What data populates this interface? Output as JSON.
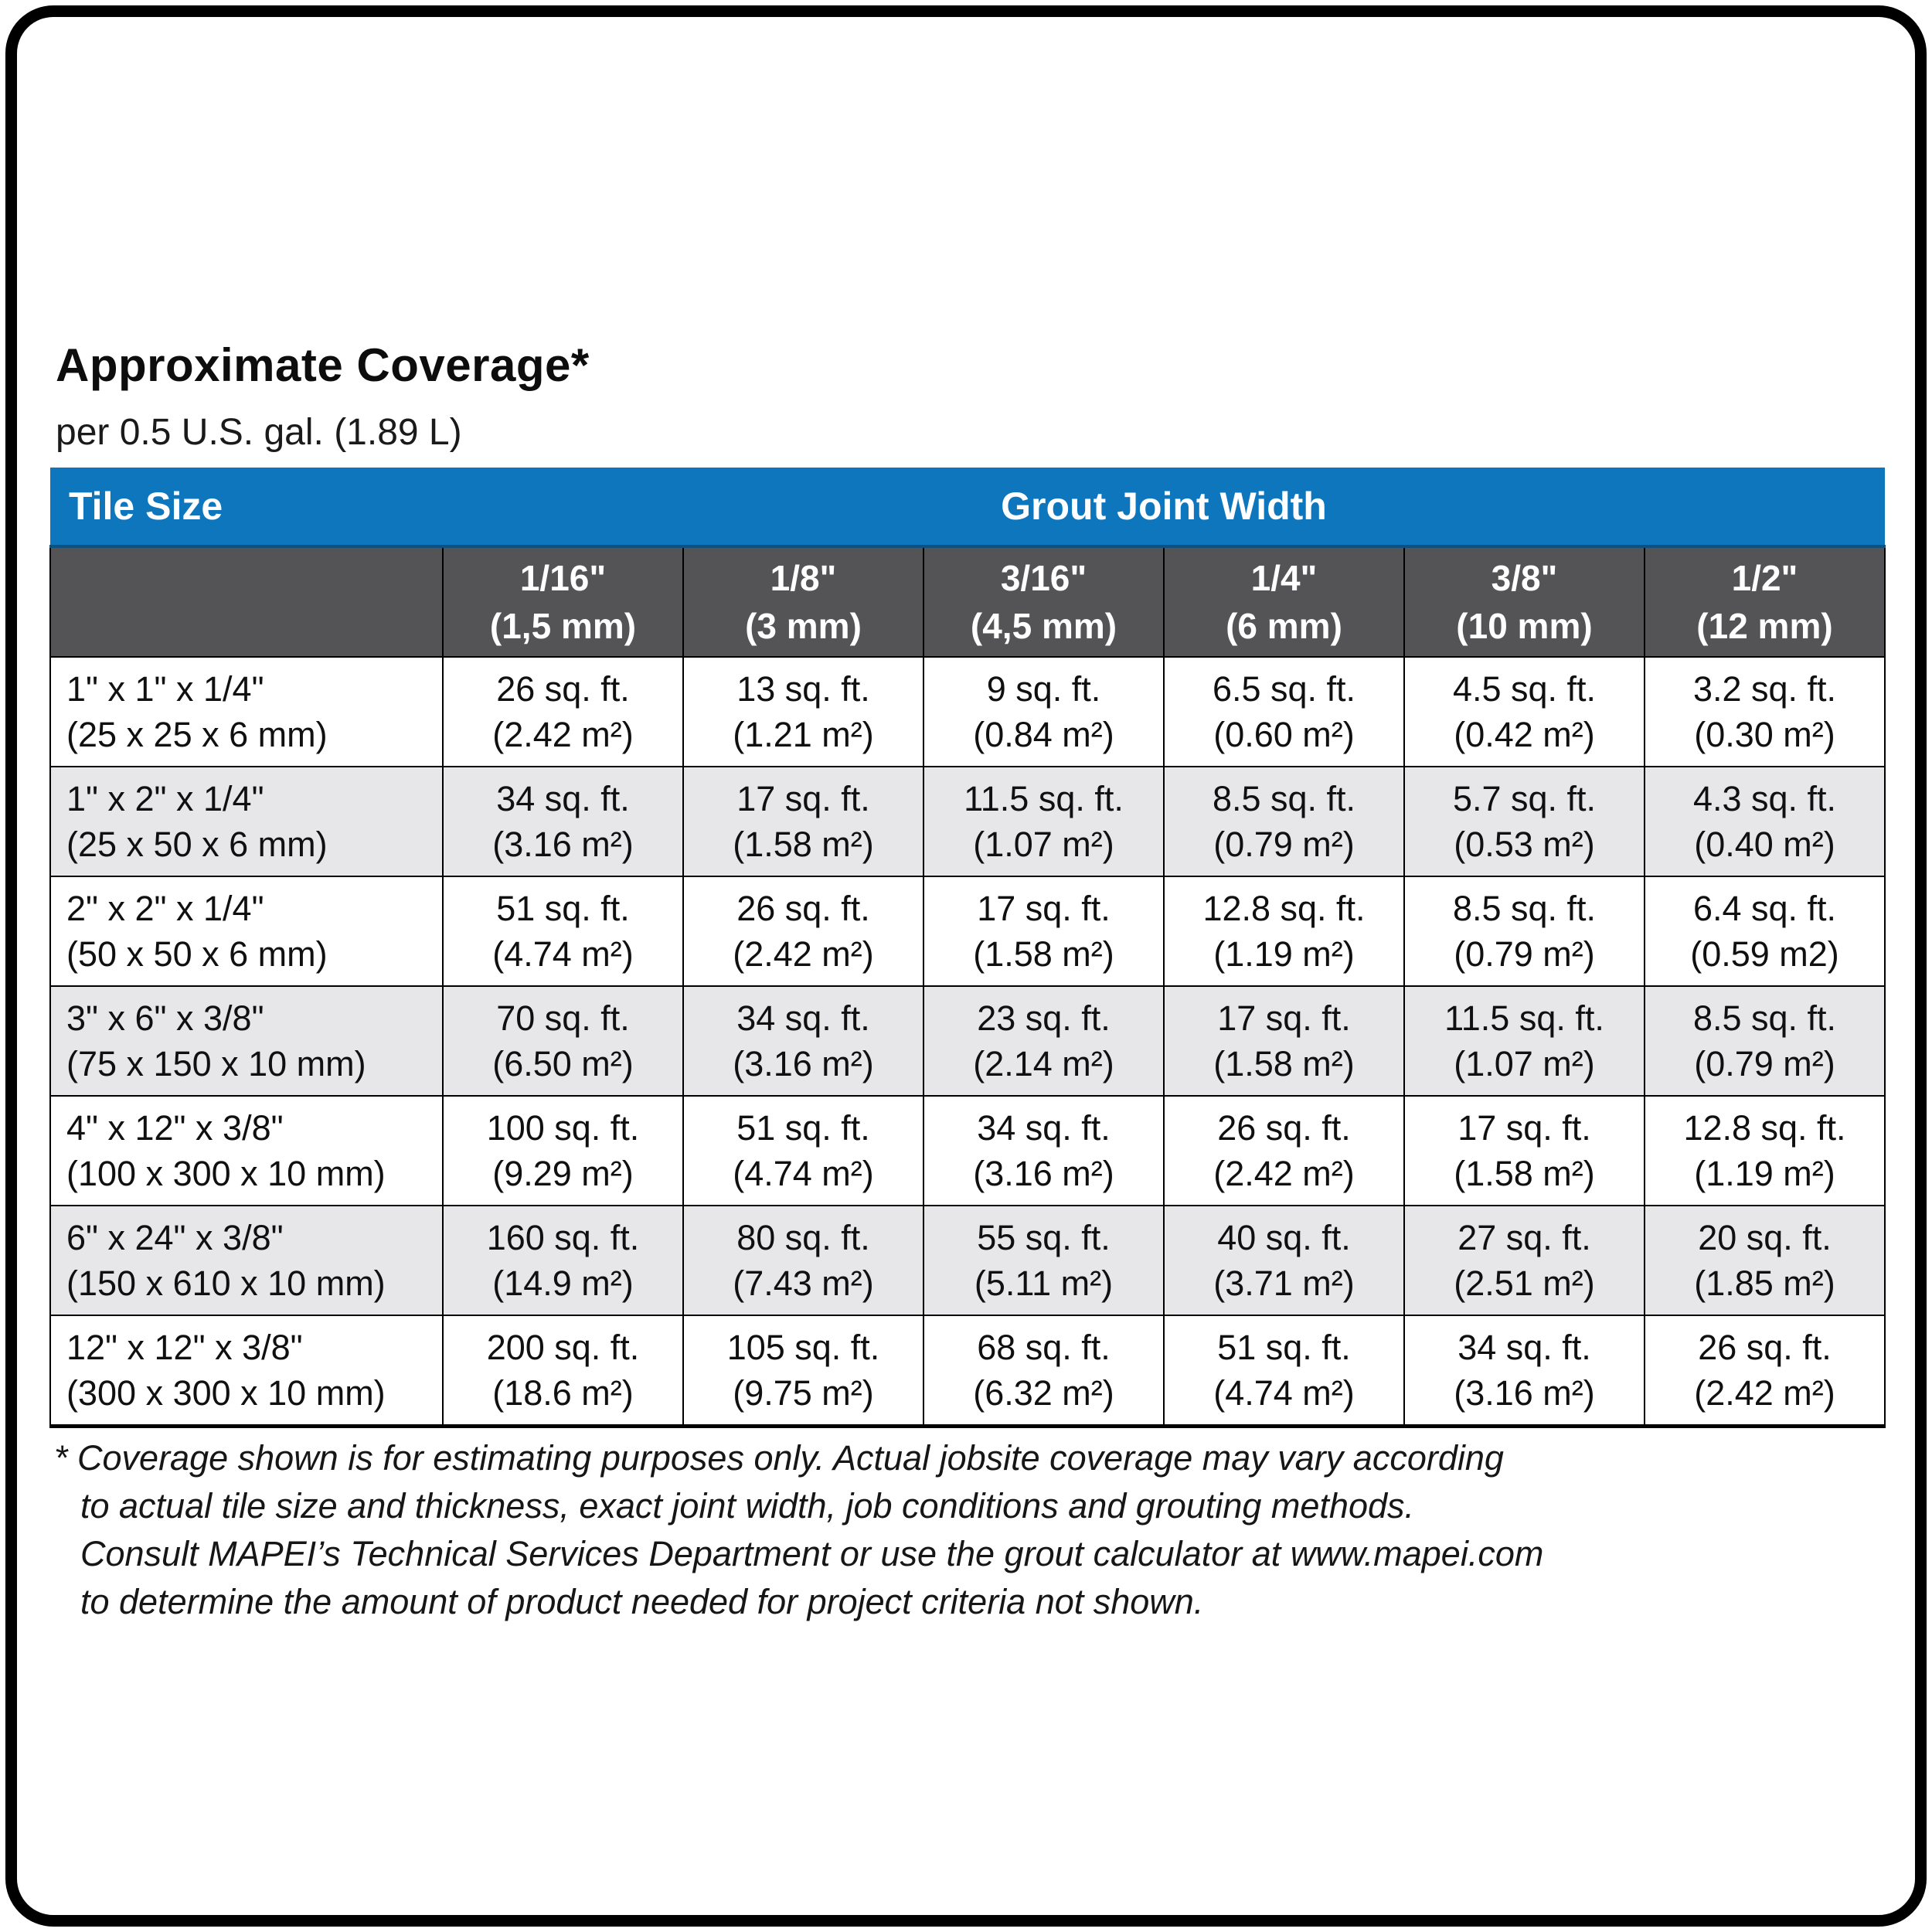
{
  "page": {
    "title": "Approximate Coverage*",
    "subtitle": "per 0.5 U.S. gal. (1.89 L)"
  },
  "colors": {
    "header_blue": "#0e76bd",
    "header_blue_edge": "#10507d",
    "subheader_gray": "#545456",
    "row_alt_gray": "#e7e7e9",
    "border_black": "#000000"
  },
  "table": {
    "corner_label": "Tile Size",
    "group_header": "Grout Joint Width",
    "columns": [
      {
        "size": "1/16\"",
        "mm": "(1,5 mm)"
      },
      {
        "size": "1/8\"",
        "mm": "(3 mm)"
      },
      {
        "size": "3/16\"",
        "mm": "(4,5 mm)"
      },
      {
        "size": "1/4\"",
        "mm": "(6 mm)"
      },
      {
        "size": "3/8\"",
        "mm": "(10 mm)"
      },
      {
        "size": "1/2\"",
        "mm": "(12 mm)"
      }
    ],
    "rows": [
      {
        "tile_in": "1\" x 1\" x 1/4\"",
        "tile_mm": "(25 x 25 x 6 mm)",
        "cells": [
          {
            "sqft": "26 sq. ft.",
            "m2": "(2.42 m²)"
          },
          {
            "sqft": "13 sq. ft.",
            "m2": "(1.21 m²)"
          },
          {
            "sqft": "9 sq. ft.",
            "m2": "(0.84 m²)"
          },
          {
            "sqft": "6.5 sq. ft.",
            "m2": "(0.60 m²)"
          },
          {
            "sqft": "4.5 sq. ft.",
            "m2": "(0.42 m²)"
          },
          {
            "sqft": "3.2 sq. ft.",
            "m2": "(0.30 m²)"
          }
        ]
      },
      {
        "tile_in": "1\" x 2\" x 1/4\"",
        "tile_mm": "(25 x 50 x 6 mm)",
        "cells": [
          {
            "sqft": "34 sq. ft.",
            "m2": "(3.16 m²)"
          },
          {
            "sqft": "17 sq. ft.",
            "m2": "(1.58 m²)"
          },
          {
            "sqft": "11.5 sq. ft.",
            "m2": "(1.07 m²)"
          },
          {
            "sqft": "8.5 sq. ft.",
            "m2": "(0.79 m²)"
          },
          {
            "sqft": "5.7 sq. ft.",
            "m2": "(0.53 m²)"
          },
          {
            "sqft": "4.3 sq. ft.",
            "m2": "(0.40 m²)"
          }
        ]
      },
      {
        "tile_in": "2\" x 2\" x 1/4\"",
        "tile_mm": "(50 x 50 x 6 mm)",
        "cells": [
          {
            "sqft": "51 sq. ft.",
            "m2": "(4.74 m²)"
          },
          {
            "sqft": "26 sq. ft.",
            "m2": "(2.42 m²)"
          },
          {
            "sqft": "17 sq. ft.",
            "m2": "(1.58 m²)"
          },
          {
            "sqft": "12.8 sq. ft.",
            "m2": "(1.19 m²)"
          },
          {
            "sqft": "8.5 sq. ft.",
            "m2": "(0.79 m²)"
          },
          {
            "sqft": "6.4 sq. ft.",
            "m2": "(0.59 m2)"
          }
        ]
      },
      {
        "tile_in": "3\" x 6\" x 3/8\"",
        "tile_mm": "(75 x 150 x 10 mm)",
        "cells": [
          {
            "sqft": "70 sq. ft.",
            "m2": "(6.50 m²)"
          },
          {
            "sqft": "34 sq. ft.",
            "m2": "(3.16 m²)"
          },
          {
            "sqft": "23 sq. ft.",
            "m2": "(2.14 m²)"
          },
          {
            "sqft": "17 sq. ft.",
            "m2": "(1.58 m²)"
          },
          {
            "sqft": "11.5 sq. ft.",
            "m2": "(1.07 m²)"
          },
          {
            "sqft": "8.5 sq. ft.",
            "m2": "(0.79 m²)"
          }
        ]
      },
      {
        "tile_in": "4\" x 12\" x 3/8\"",
        "tile_mm": "(100 x 300 x 10 mm)",
        "cells": [
          {
            "sqft": "100 sq. ft.",
            "m2": "(9.29 m²)"
          },
          {
            "sqft": "51 sq. ft.",
            "m2": "(4.74 m²)"
          },
          {
            "sqft": "34 sq. ft.",
            "m2": "(3.16 m²)"
          },
          {
            "sqft": "26 sq. ft.",
            "m2": "(2.42 m²)"
          },
          {
            "sqft": "17 sq. ft.",
            "m2": "(1.58 m²)"
          },
          {
            "sqft": "12.8 sq. ft.",
            "m2": "(1.19 m²)"
          }
        ]
      },
      {
        "tile_in": "6\" x 24\" x 3/8\"",
        "tile_mm": "(150 x 610 x 10 mm)",
        "cells": [
          {
            "sqft": "160 sq. ft.",
            "m2": "(14.9 m²)"
          },
          {
            "sqft": "80 sq. ft.",
            "m2": "(7.43 m²)"
          },
          {
            "sqft": "55 sq. ft.",
            "m2": "(5.11 m²)"
          },
          {
            "sqft": "40 sq. ft.",
            "m2": "(3.71 m²)"
          },
          {
            "sqft": "27 sq. ft.",
            "m2": "(2.51 m²)"
          },
          {
            "sqft": "20 sq. ft.",
            "m2": "(1.85 m²)"
          }
        ]
      },
      {
        "tile_in": "12\" x 12\" x 3/8\"",
        "tile_mm": "(300 x 300 x 10 mm)",
        "cells": [
          {
            "sqft": "200 sq. ft.",
            "m2": "(18.6 m²)"
          },
          {
            "sqft": "105 sq. ft.",
            "m2": "(9.75 m²)"
          },
          {
            "sqft": "68 sq. ft.",
            "m2": "(6.32 m²)"
          },
          {
            "sqft": "51 sq. ft.",
            "m2": "(4.74 m²)"
          },
          {
            "sqft": "34 sq. ft.",
            "m2": "(3.16 m²)"
          },
          {
            "sqft": "26 sq. ft.",
            "m2": "(2.42 m²)"
          }
        ]
      }
    ]
  },
  "footnote": {
    "lines": [
      "* Coverage shown is for estimating purposes only. Actual jobsite coverage may vary according",
      "to actual tile size and thickness, exact joint width, job conditions and grouting methods.",
      "Consult MAPEI’s Technical Services Department or use the grout calculator at www.mapei.com",
      "to determine the amount of product needed for project criteria not shown."
    ]
  }
}
